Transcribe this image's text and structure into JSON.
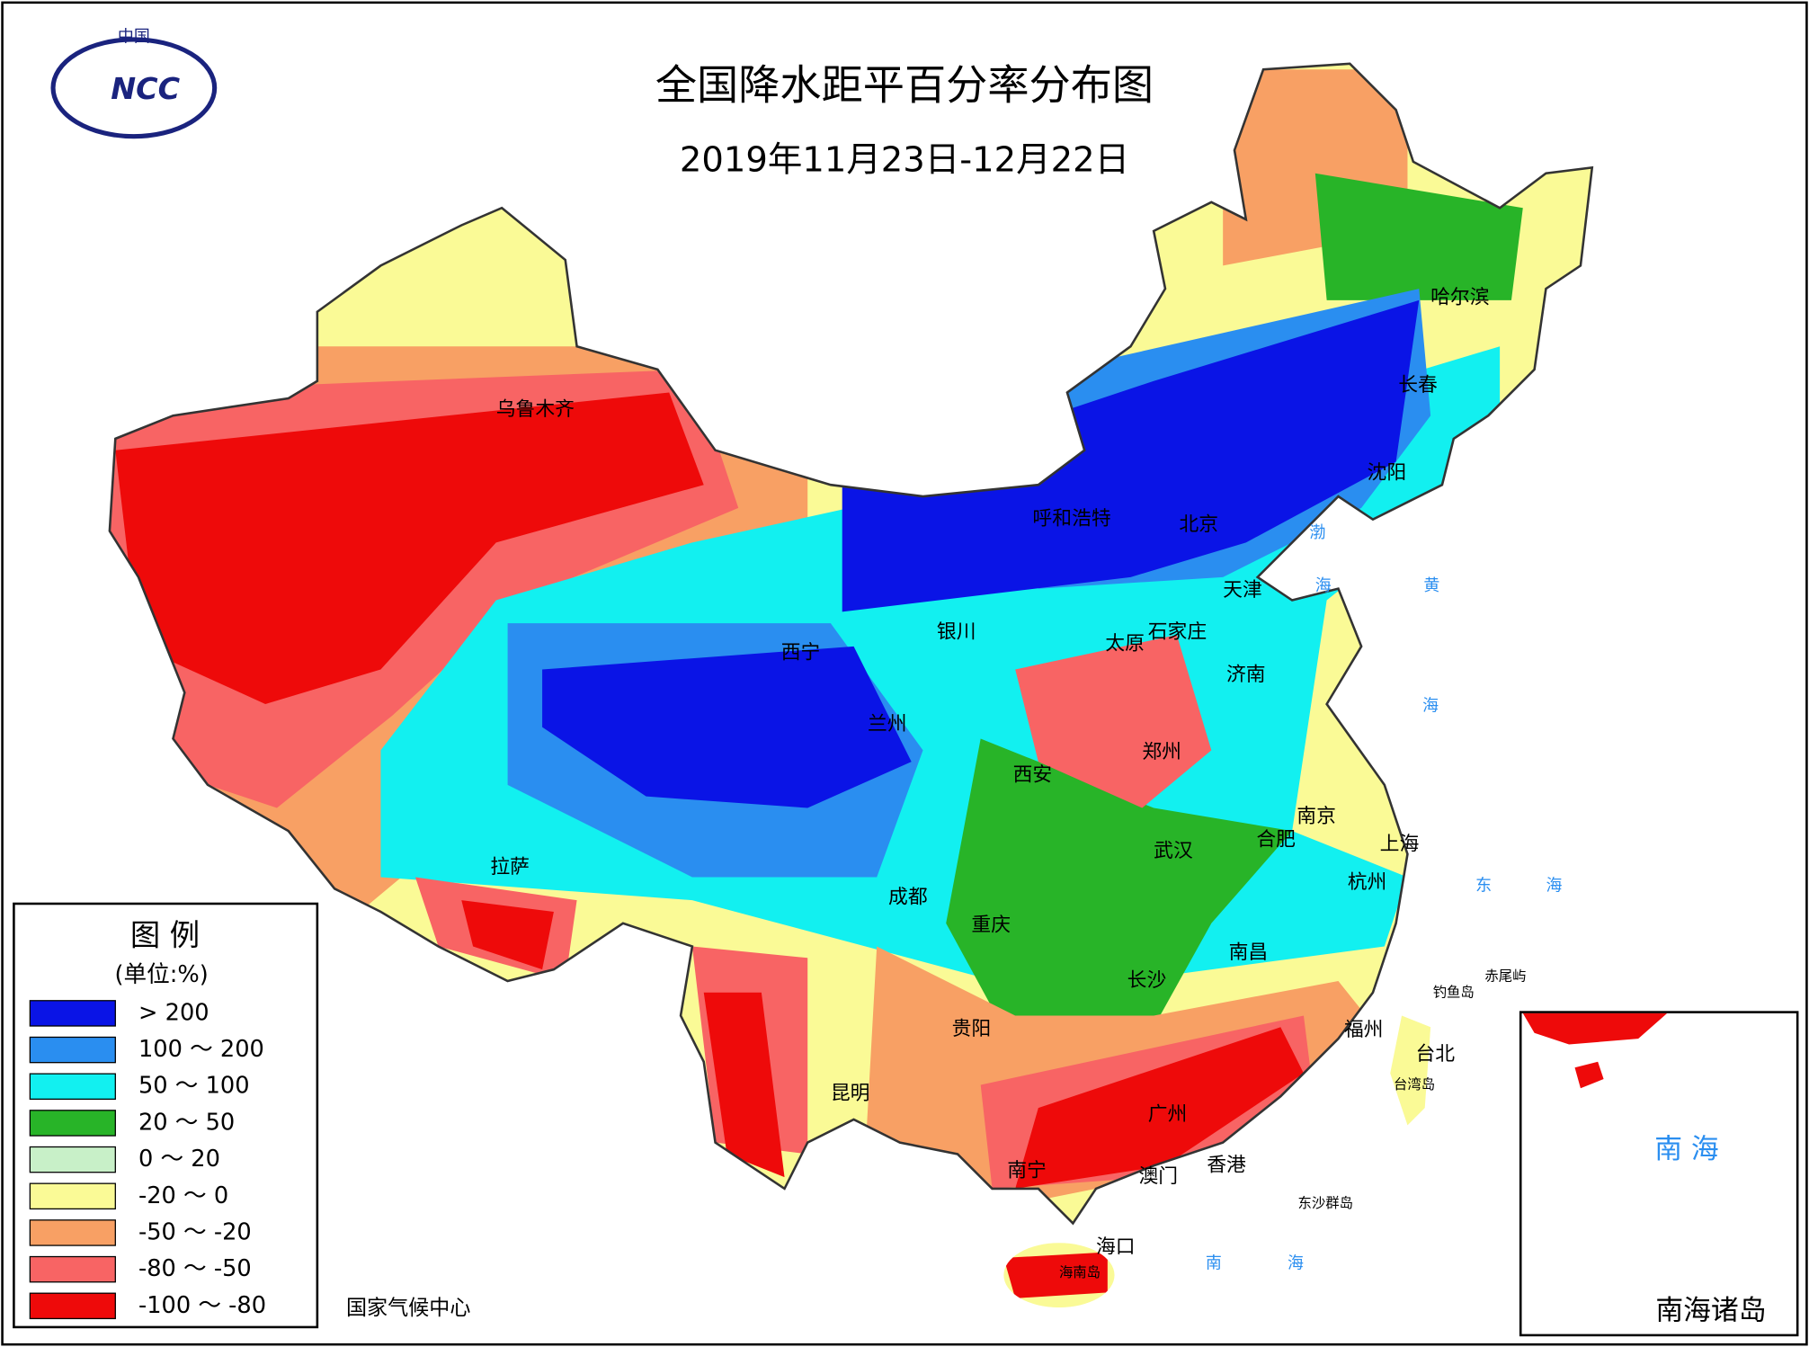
{
  "header": {
    "logo_top": "中国",
    "logo_text": "NCC",
    "title": "全国降水距平百分率分布图",
    "subtitle": "2019年11月23日-12月22日"
  },
  "legend": {
    "title": "图 例",
    "unit": "(单位:%)",
    "items": [
      {
        "label": "> 200",
        "color": "#0a14e6"
      },
      {
        "label": "100 ～ 200",
        "color": "#2a8ef0"
      },
      {
        "label": "50 ～ 100",
        "color": "#12f0f0"
      },
      {
        "label": "20 ～ 50",
        "color": "#28b428"
      },
      {
        "label": "0 ～ 20",
        "color": "#c8f0c8"
      },
      {
        "label": "-20 ～ 0",
        "color": "#fafa96"
      },
      {
        "label": "-50 ～ -20",
        "color": "#f8a064"
      },
      {
        "label": "-80 ～ -50",
        "color": "#f86464"
      },
      {
        "label": "-100 ～ -80",
        "color": "#ee0a0a"
      }
    ]
  },
  "cities": [
    "乌鲁木齐",
    "呼和浩特",
    "北京",
    "天津",
    "石家庄",
    "太原",
    "银川",
    "西宁",
    "兰州",
    "济南",
    "郑州",
    "西安",
    "南京",
    "合肥",
    "上海",
    "武汉",
    "杭州",
    "拉萨",
    "成都",
    "重庆",
    "南昌",
    "长沙",
    "贵阳",
    "福州",
    "台北",
    "昆明",
    "广州",
    "南宁",
    "澳门",
    "香港",
    "海口",
    "哈尔滨",
    "长春",
    "沈阳"
  ],
  "places": [
    "台湾岛",
    "东沙群岛",
    "海南岛",
    "钓鱼岛",
    "赤尾屿"
  ],
  "seas": [
    "渤",
    "海",
    "黄",
    "海",
    "东",
    "海",
    "南",
    "海"
  ],
  "inset": {
    "sea": "南 海",
    "title": "南海诸岛"
  },
  "footer": "国家气候中心"
}
